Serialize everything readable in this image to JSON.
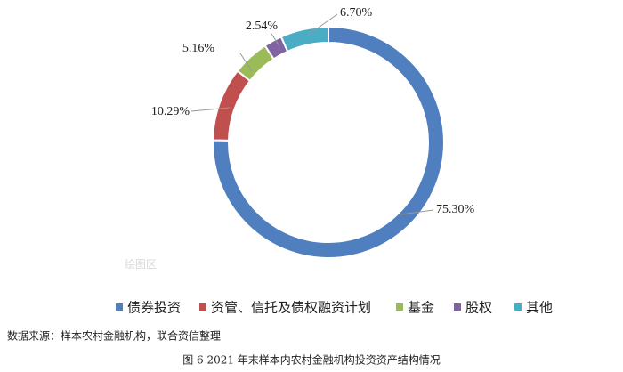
{
  "chart_data": {
    "type": "pie",
    "categories": [
      "债券投资",
      "资管、信托及债权融资计划",
      "基金",
      "股权",
      "其他"
    ],
    "values": [
      75.3,
      10.29,
      5.16,
      2.54,
      6.7
    ],
    "value_labels": [
      "75.30%",
      "10.29%",
      "5.16%",
      "2.54%",
      "6.70%"
    ],
    "colors": [
      "#4f7fbf",
      "#c0504d",
      "#9bbb59",
      "#8064a2",
      "#4bacc6"
    ],
    "plot_area_label": "绘图区",
    "source": "数据来源：样本农村金融机构，联合资信整理",
    "caption": "图 6   2021 年末样本内农村金融机构投资资产结构情况"
  }
}
